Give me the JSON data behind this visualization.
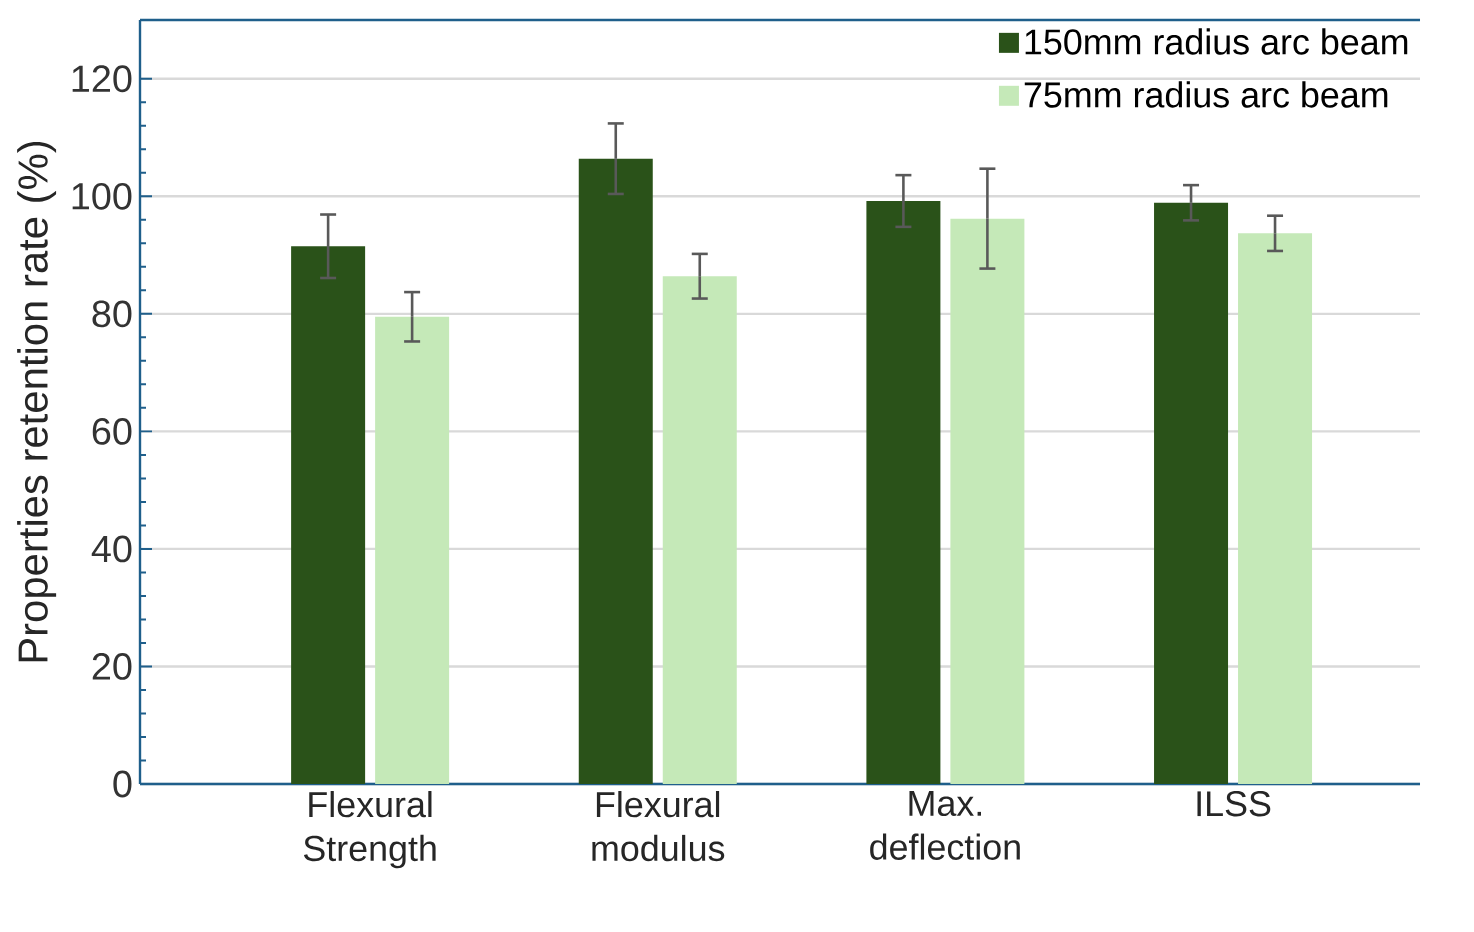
{
  "chart_data": {
    "type": "bar",
    "ylabel": "Properties retention rate  (%)",
    "categories": [
      "Flexural Strength",
      "Flexural modulus",
      "Max. deflection",
      "ILSS"
    ],
    "series": [
      {
        "name": "150mm radius arc beam",
        "color": "#2a5219",
        "values": [
          91.5,
          106.4,
          99.2,
          98.9
        ],
        "errors": [
          5.4,
          6.0,
          4.4,
          3.0
        ]
      },
      {
        "name": "75mm radius arc beam",
        "color": "#c5e9b8",
        "values": [
          79.5,
          86.4,
          96.2,
          93.7
        ],
        "errors": [
          4.2,
          3.8,
          8.5,
          3.0
        ]
      }
    ],
    "ylim": [
      0,
      130
    ],
    "yticks": [
      0,
      20,
      40,
      60,
      80,
      100,
      120
    ],
    "grid": "y",
    "legend": "top right"
  }
}
